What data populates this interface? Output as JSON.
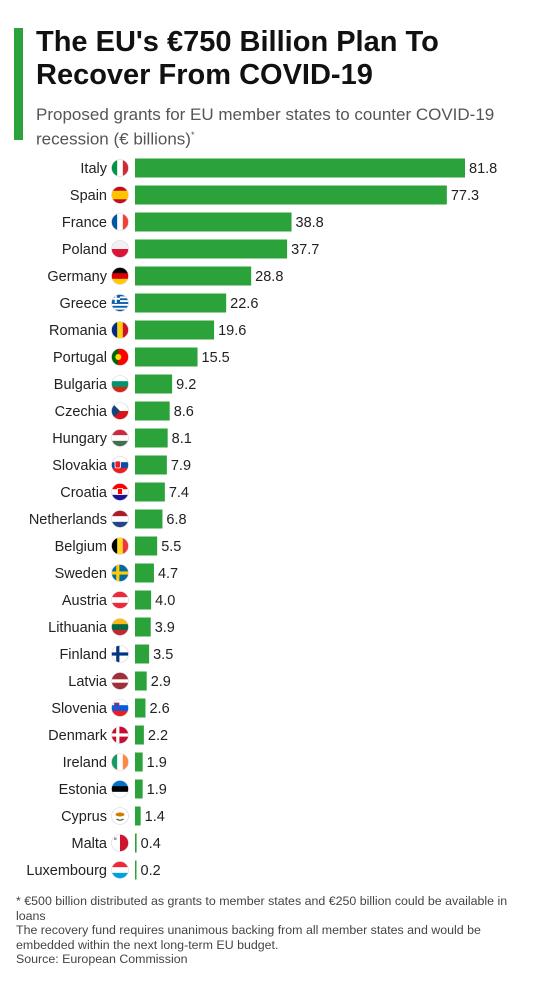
{
  "header": {
    "title": "The EU's €750 Billion Plan To Recover From COVID-19",
    "subtitle": "Proposed grants for EU member states to counter COVID-19 recession (€ billions)",
    "subtitle_marker": "*"
  },
  "colors": {
    "accent": "#2ba33a",
    "bar": "#2ba33a"
  },
  "chart_data": {
    "type": "bar",
    "orientation": "horizontal",
    "title": "The EU's €750 Billion Plan To Recover From COVID-19",
    "subtitle": "Proposed grants for EU member states to counter COVID-19 recession (€ billions)",
    "unit": "€ billions",
    "categories": [
      "Italy",
      "Spain",
      "France",
      "Poland",
      "Germany",
      "Greece",
      "Romania",
      "Portugal",
      "Bulgaria",
      "Czechia",
      "Hungary",
      "Slovakia",
      "Croatia",
      "Netherlands",
      "Belgium",
      "Sweden",
      "Austria",
      "Lithuania",
      "Finland",
      "Latvia",
      "Slovenia",
      "Denmark",
      "Ireland",
      "Estonia",
      "Cyprus",
      "Malta",
      "Luxembourg"
    ],
    "values": [
      81.8,
      77.3,
      38.8,
      37.7,
      28.8,
      22.6,
      19.6,
      15.5,
      9.2,
      8.6,
      8.1,
      7.9,
      7.4,
      6.8,
      5.5,
      4.7,
      4.0,
      3.9,
      3.5,
      2.9,
      2.6,
      2.2,
      1.9,
      1.9,
      1.4,
      0.4,
      0.2
    ],
    "value_labels": [
      "81.8",
      "77.3",
      "38.8",
      "37.7",
      "28.8",
      "22.6",
      "19.6",
      "15.5",
      "9.2",
      "8.6",
      "8.1",
      "7.9",
      "7.4",
      "6.8",
      "5.5",
      "4.7",
      "4.0",
      "3.9",
      "3.5",
      "2.9",
      "2.6",
      "2.2",
      "1.9",
      "1.9",
      "1.4",
      "0.4",
      "0.2"
    ],
    "flags": [
      "italy-flag-icon",
      "spain-flag-icon",
      "france-flag-icon",
      "poland-flag-icon",
      "germany-flag-icon",
      "greece-flag-icon",
      "romania-flag-icon",
      "portugal-flag-icon",
      "bulgaria-flag-icon",
      "czechia-flag-icon",
      "hungary-flag-icon",
      "slovakia-flag-icon",
      "croatia-flag-icon",
      "netherlands-flag-icon",
      "belgium-flag-icon",
      "sweden-flag-icon",
      "austria-flag-icon",
      "lithuania-flag-icon",
      "finland-flag-icon",
      "latvia-flag-icon",
      "slovenia-flag-icon",
      "denmark-flag-icon",
      "ireland-flag-icon",
      "estonia-flag-icon",
      "cyprus-flag-icon",
      "malta-flag-icon",
      "luxembourg-flag-icon"
    ],
    "xlim": [
      0,
      81.8
    ],
    "grid": false,
    "legend": "none"
  },
  "footnotes": {
    "note1": "* €500 billion distributed as grants to member states and €250 billion could be available in loans",
    "note2": "The recovery fund requires unanimous backing from all member states and would be embedded within the next long-term EU budget.",
    "source": "Source: European Commission"
  }
}
